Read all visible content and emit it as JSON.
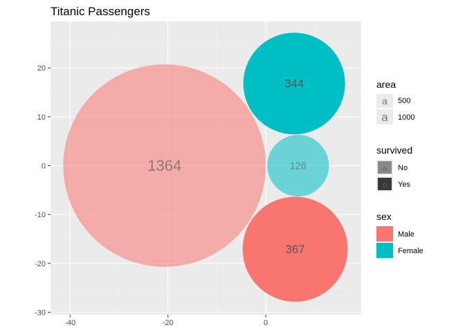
{
  "chart_data": {
    "type": "bubble",
    "title": "Titanic Passengers",
    "xlabel": "",
    "ylabel": "",
    "xlim": [
      -44,
      19.5
    ],
    "ylim": [
      -30.5,
      29.5
    ],
    "x_ticks": [
      -40,
      -20,
      0
    ],
    "y_ticks": [
      -30,
      -20,
      -10,
      0,
      10,
      20
    ],
    "grid": true,
    "legend_position": "right",
    "points": [
      {
        "label": "1364",
        "x": -20.7,
        "y": 0,
        "area": 1364,
        "sex": "Male",
        "survived": "No"
      },
      {
        "label": "344",
        "x": 5.8,
        "y": 16.8,
        "area": 344,
        "sex": "Female",
        "survived": "Yes"
      },
      {
        "label": "126",
        "x": 6.6,
        "y": 0,
        "area": 126,
        "sex": "Female",
        "survived": "No"
      },
      {
        "label": "367",
        "x": 6.0,
        "y": -17.1,
        "area": 367,
        "sex": "Male",
        "survived": "Yes"
      }
    ],
    "legends": {
      "area": {
        "title": "area",
        "glyph": "a",
        "entries": [
          "500",
          "1000"
        ]
      },
      "survived": {
        "title": "survived",
        "entries": [
          "No",
          "Yes"
        ]
      },
      "sex": {
        "title": "sex",
        "entries": [
          "Male",
          "Female"
        ]
      }
    },
    "colors": {
      "Male": "#F8766D",
      "Female": "#00BFC4",
      "panel": "#EBEBEB",
      "grid_major": "#FFFFFF",
      "grid_minor": "#F5F5F5",
      "survived_No": "#888888",
      "survived_Yes": "#3a3a3a"
    },
    "alpha": {
      "No": 0.55,
      "Yes": 1.0
    }
  }
}
